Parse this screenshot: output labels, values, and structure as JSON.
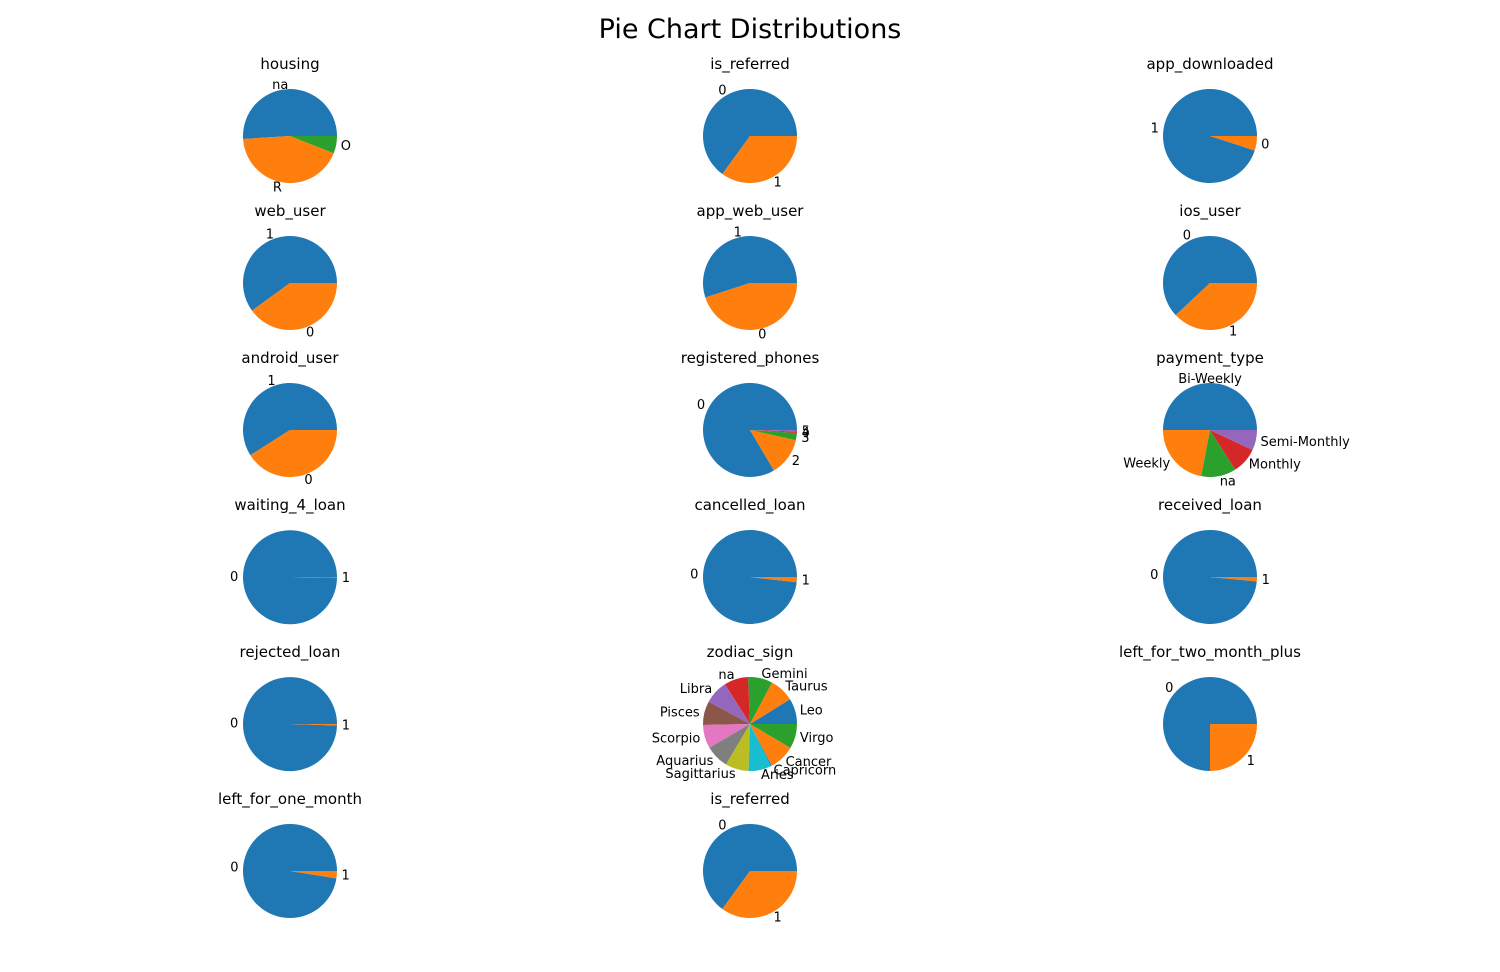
{
  "suptitle": "Pie Chart Distributions",
  "palette": [
    "#1f77b4",
    "#ff7f0e",
    "#2ca02c",
    "#d62728",
    "#9467bd",
    "#8c564b",
    "#e377c2",
    "#7f7f7f",
    "#bcbd22",
    "#17becf"
  ],
  "chart_data": [
    {
      "type": "pie",
      "title": "housing",
      "labels": [
        "na",
        "R",
        "O"
      ],
      "values": [
        51,
        43,
        6
      ]
    },
    {
      "type": "pie",
      "title": "is_referred",
      "labels": [
        "0",
        "1"
      ],
      "values": [
        65,
        35
      ]
    },
    {
      "type": "pie",
      "title": "app_downloaded",
      "labels": [
        "1",
        "0"
      ],
      "values": [
        95,
        5
      ]
    },
    {
      "type": "pie",
      "title": "web_user",
      "labels": [
        "1",
        "0"
      ],
      "values": [
        60,
        40
      ]
    },
    {
      "type": "pie",
      "title": "app_web_user",
      "labels": [
        "1",
        "0"
      ],
      "values": [
        55,
        45
      ]
    },
    {
      "type": "pie",
      "title": "ios_user",
      "labels": [
        "0",
        "1"
      ],
      "values": [
        62,
        38
      ]
    },
    {
      "type": "pie",
      "title": "android_user",
      "labels": [
        "1",
        "0"
      ],
      "values": [
        59,
        41
      ]
    },
    {
      "type": "pie",
      "title": "registered_phones",
      "labels": [
        "0",
        "2",
        "3",
        "4",
        "5"
      ],
      "values": [
        83.5,
        13,
        2.5,
        0.5,
        0.5
      ]
    },
    {
      "type": "pie",
      "title": "payment_type",
      "labels": [
        "Bi-Weekly",
        "Weekly",
        "na",
        "Monthly",
        "Semi-Monthly"
      ],
      "values": [
        50,
        22,
        12,
        9,
        7
      ]
    },
    {
      "type": "pie",
      "title": "waiting_4_loan",
      "labels": [
        "0",
        "1"
      ],
      "values": [
        99.8,
        0.2
      ]
    },
    {
      "type": "pie",
      "title": "cancelled_loan",
      "labels": [
        "0",
        "1"
      ],
      "values": [
        98.2,
        1.8
      ]
    },
    {
      "type": "pie",
      "title": "received_loan",
      "labels": [
        "0",
        "1"
      ],
      "values": [
        98.5,
        1.5
      ]
    },
    {
      "type": "pie",
      "title": "rejected_loan",
      "labels": [
        "0",
        "1"
      ],
      "values": [
        99.5,
        0.5
      ]
    },
    {
      "type": "pie",
      "title": "zodiac_sign",
      "labels": [
        "Cancer",
        "Leo",
        "Virgo",
        "Taurus",
        "Gemini",
        "na",
        "Libra",
        "Pisces",
        "Scorpio",
        "Aquarius",
        "Sagittarius",
        "Aries",
        "Capricorn"
      ],
      "values": [
        8.85,
        8.81,
        8.48,
        8.44,
        8.4,
        8.3,
        8.21,
        8.18,
        8.1,
        8.05,
        8.02,
        7.83,
        0.33
      ],
      "order": [
        "Leo",
        "Taurus",
        "Gemini",
        "na",
        "Libra",
        "Pisces",
        "Scorpio",
        "Aquarius",
        "Sagittarius",
        "Aries",
        "Capricorn",
        "Cancer",
        "Virgo"
      ]
    },
    {
      "type": "pie",
      "title": "left_for_two_month_plus",
      "labels": [
        "0",
        "1"
      ],
      "values": [
        75,
        25
      ]
    },
    {
      "type": "pie",
      "title": "left_for_one_month",
      "labels": [
        "0",
        "1"
      ],
      "values": [
        97.5,
        2.5
      ]
    },
    {
      "type": "pie",
      "title": "is_referred",
      "labels": [
        "0",
        "1"
      ],
      "values": [
        65,
        35
      ]
    }
  ]
}
